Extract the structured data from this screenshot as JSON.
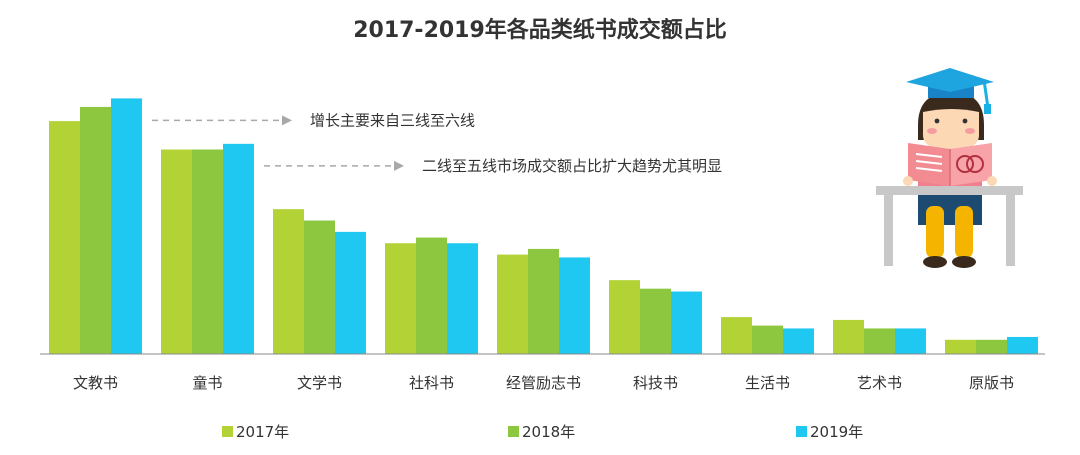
{
  "chart_data": {
    "type": "bar",
    "title": "2017-2019年各品类纸书成交额占比",
    "categories": [
      "文教书",
      "童书",
      "文学书",
      "社科书",
      "经管励志书",
      "科技书",
      "生活书",
      "艺术书",
      "原版书"
    ],
    "series": [
      {
        "name": "2017年",
        "color": "#b2d235",
        "values": [
          82,
          72,
          51,
          39,
          35,
          26,
          13,
          12,
          5
        ]
      },
      {
        "name": "2018年",
        "color": "#8dc63f",
        "values": [
          87,
          72,
          47,
          41,
          37,
          23,
          10,
          9,
          5
        ]
      },
      {
        "name": "2019年",
        "color": "#1ec8f0",
        "values": [
          90,
          74,
          43,
          39,
          34,
          22,
          9,
          9,
          6
        ]
      }
    ],
    "ylim": [
      0,
      100
    ],
    "grid": false,
    "legend": "bottom",
    "annotations": [
      {
        "text": "增长主要来自三线至六线",
        "category_index": 0
      },
      {
        "text": "二线至五线市场成交额占比扩大趋势尤其明显",
        "category_index": 1
      }
    ]
  },
  "illustration": {
    "icon": "graduate-student-reading-icon"
  }
}
